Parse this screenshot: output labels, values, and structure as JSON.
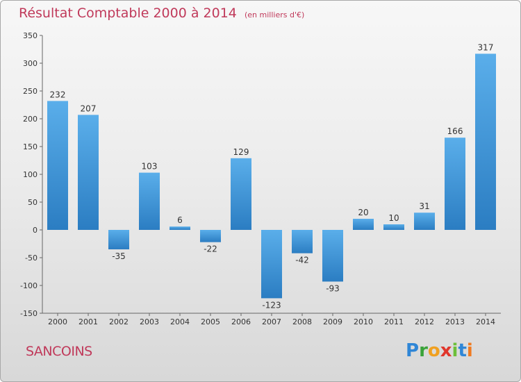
{
  "title": "Résultat Comptable 2000 à 2014",
  "unit": "(en milliers d'€)",
  "commune": "SANCOINS",
  "logo": "Proxiti",
  "colors": {
    "title": "#c0395a",
    "bar_top": "#5aaeea",
    "bar_bottom": "#2b7dc2",
    "axis": "#555555"
  },
  "chart_data": {
    "type": "bar",
    "title": "Résultat Comptable 2000 à 2014",
    "xlabel": "",
    "ylabel": "",
    "categories": [
      "2000",
      "2001",
      "2002",
      "2003",
      "2004",
      "2005",
      "2006",
      "2007",
      "2008",
      "2009",
      "2010",
      "2011",
      "2012",
      "2013",
      "2014"
    ],
    "values": [
      232,
      207,
      -35,
      103,
      6,
      -22,
      129,
      -123,
      -42,
      -93,
      20,
      10,
      31,
      166,
      317
    ],
    "ylim": [
      -150,
      350
    ],
    "yticks": [
      -150,
      -100,
      -50,
      0,
      50,
      100,
      150,
      200,
      250,
      300,
      350
    ],
    "grid": false,
    "legend": "none"
  }
}
